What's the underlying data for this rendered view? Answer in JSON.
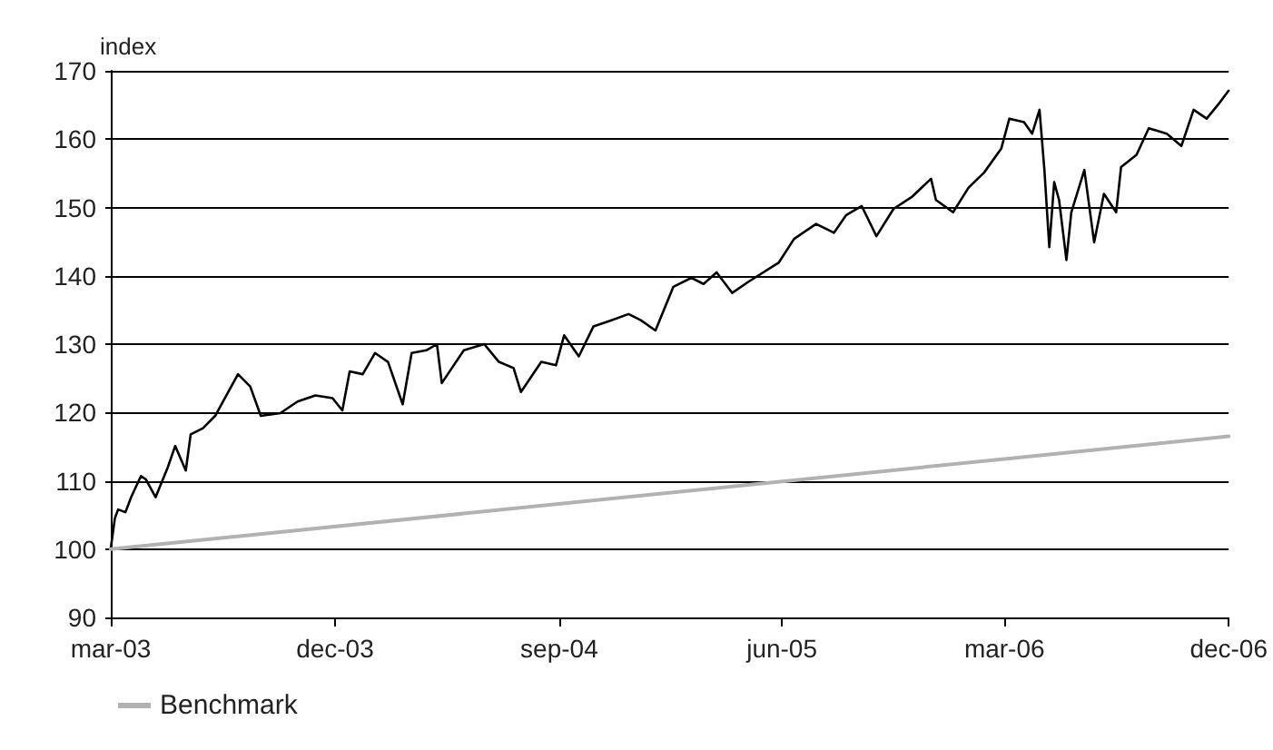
{
  "chart_data": {
    "type": "line",
    "ylabel": "index",
    "xlim": [
      "2003-03-01",
      "2006-12-01"
    ],
    "xticks": [
      {
        "value": "2003-03-01",
        "label": "mar-03"
      },
      {
        "value": "2003-12-01",
        "label": "dec-03"
      },
      {
        "value": "2004-09-01",
        "label": "sep-04"
      },
      {
        "value": "2005-06-01",
        "label": "jun-05"
      },
      {
        "value": "2006-03-01",
        "label": "mar-06"
      },
      {
        "value": "2006-12-01",
        "label": "dec-06"
      }
    ],
    "ylim": [
      90,
      170
    ],
    "yticks": [
      90,
      100,
      110,
      120,
      130,
      140,
      150,
      160,
      170
    ],
    "grid": "y",
    "legend": "bottom left",
    "marker": "none",
    "line_style": "solid",
    "series": [
      {
        "color": "#000000",
        "x": [
          "2003-03-01",
          "2003-03-06",
          "2003-03-10",
          "2003-03-19",
          "2003-03-26",
          "2003-04-07",
          "2003-04-13",
          "2003-04-25",
          "2003-05-10",
          "2003-05-19",
          "2003-06-01",
          "2003-06-07",
          "2003-06-22",
          "2003-07-07",
          "2003-07-19",
          "2003-08-04",
          "2003-08-19",
          "2003-09-01",
          "2003-09-25",
          "2003-10-16",
          "2003-11-07",
          "2003-11-28",
          "2003-12-10",
          "2003-12-19",
          "2004-01-04",
          "2004-01-19",
          "2004-02-04",
          "2004-02-22",
          "2004-03-04",
          "2004-03-22",
          "2004-04-04",
          "2004-04-10",
          "2004-05-07",
          "2004-06-01",
          "2004-06-19",
          "2004-07-07",
          "2004-07-16",
          "2004-08-10",
          "2004-08-28",
          "2004-09-07",
          "2004-09-25",
          "2004-10-13",
          "2004-11-04",
          "2004-11-25",
          "2004-12-10",
          "2004-12-28",
          "2005-01-19",
          "2005-02-10",
          "2005-02-25",
          "2005-03-13",
          "2005-04-01",
          "2005-04-22",
          "2005-05-28",
          "2005-06-16",
          "2005-07-13",
          "2005-08-04",
          "2005-08-19",
          "2005-09-07",
          "2005-09-25",
          "2005-10-16",
          "2005-11-07",
          "2005-12-01",
          "2005-12-07",
          "2005-12-28",
          "2006-01-16",
          "2006-02-04",
          "2006-02-25",
          "2006-03-07",
          "2006-03-25",
          "2006-04-04",
          "2006-04-13",
          "2006-04-19",
          "2006-04-25",
          "2006-05-01",
          "2006-05-07",
          "2006-05-16",
          "2006-05-22",
          "2006-06-07",
          "2006-06-19",
          "2006-07-01",
          "2006-07-16",
          "2006-07-22",
          "2006-08-10",
          "2006-08-25",
          "2006-09-16",
          "2006-10-04",
          "2006-10-19",
          "2006-11-04",
          "2006-11-19",
          "2006-12-01"
        ],
        "values": [
          100.1,
          104.5,
          105.8,
          105.4,
          107.6,
          110.7,
          110.2,
          107.6,
          112,
          115.1,
          111.5,
          116.8,
          117.7,
          119.5,
          122.1,
          125.6,
          123.8,
          119.5,
          119.9,
          121.6,
          122.5,
          122.1,
          120.3,
          126,
          125.6,
          128.7,
          127.4,
          121.2,
          128.7,
          129.1,
          130,
          124.3,
          129.1,
          130,
          127.4,
          126.5,
          123,
          127.4,
          126.9,
          131.3,
          128.2,
          132.6,
          133.5,
          134.4,
          133.5,
          132,
          138.4,
          139.7,
          138.8,
          140.5,
          137.5,
          139.2,
          141.9,
          145.4,
          147.6,
          146.3,
          148.9,
          150.2,
          145.8,
          149.8,
          151.5,
          154.2,
          151.1,
          149.3,
          152.9,
          155.1,
          158.6,
          163,
          162.5,
          160.8,
          164.3,
          155.5,
          144.2,
          153.7,
          151.1,
          142.3,
          149.3,
          155.5,
          144.9,
          152,
          149.3,
          155.9,
          157.7,
          161.6,
          160.8,
          159,
          164.3,
          163,
          165.2,
          167.1
        ]
      },
      {
        "name": "Benchmark",
        "color": "#b2b2b2",
        "x": [
          "2003-03-01",
          "2006-12-01"
        ],
        "values": [
          100,
          116.5
        ]
      }
    ]
  }
}
